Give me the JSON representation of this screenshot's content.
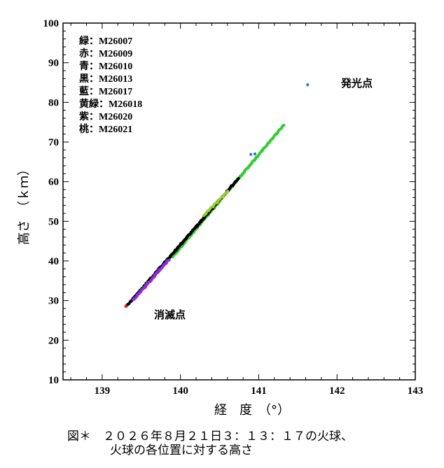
{
  "chart_data": {
    "type": "scatter",
    "title": "",
    "xlabel": "経　度　（°）",
    "ylabel": "高さ　（ｋｍ）",
    "xlim": [
      138.5,
      143
    ],
    "ylim": [
      10,
      100
    ],
    "x_ticks": [
      139,
      140,
      141,
      142,
      143
    ],
    "y_ticks": [
      10,
      20,
      30,
      40,
      50,
      60,
      70,
      80,
      90,
      100
    ],
    "grid": false,
    "legend_position": "top-left",
    "legend": [
      {
        "label": "緑：M26007",
        "color": "#33cc33"
      },
      {
        "label": "赤：M26009",
        "color": "#e02020"
      },
      {
        "label": "青：M26010",
        "color": "#1f77d0"
      },
      {
        "label": "黒：M26013",
        "color": "#000000"
      },
      {
        "label": "藍：M26017",
        "color": "#3a3aa0"
      },
      {
        "label": "黄緑：M26018",
        "color": "#9acd32"
      },
      {
        "label": "紫：M26020",
        "color": "#8a2be2"
      },
      {
        "label": "桃：M26021",
        "color": "#ff69b4"
      }
    ],
    "series": [
      {
        "name": "緑：M26007",
        "color": "#33cc33",
        "from": [
          139.9,
          41.0
        ],
        "to": [
          141.32,
          74.3
        ],
        "points": 160
      },
      {
        "name": "赤：M26009",
        "color": "#e02020",
        "from": [
          139.3,
          28.5
        ],
        "to": [
          139.32,
          28.9
        ],
        "points": 3
      },
      {
        "name": "青：M26010",
        "color": "#1f77d0",
        "from": [
          140.9,
          67.0
        ],
        "to": [
          140.95,
          67.1
        ],
        "points": 2
      },
      {
        "name": "青：M26010",
        "color": "#1f77d0",
        "from": [
          141.63,
          84.5
        ],
        "to": [
          141.63,
          84.5
        ],
        "points": 1
      },
      {
        "name": "黒：M26013",
        "color": "#000000",
        "from": [
          139.33,
          29.0
        ],
        "to": [
          140.74,
          60.8
        ],
        "points": 200
      },
      {
        "name": "黄緑：M26018",
        "color": "#9acd32",
        "from": [
          140.3,
          51.5
        ],
        "to": [
          140.6,
          57.5
        ],
        "points": 25
      },
      {
        "name": "紫：M26020",
        "color": "#8a2be2",
        "from": [
          139.4,
          30.2
        ],
        "to": [
          139.85,
          40.3
        ],
        "points": 70
      }
    ],
    "annotations": [
      {
        "text": "発光点",
        "x": 141.95,
        "y": 84.5
      },
      {
        "text": "消滅点",
        "x": 139.55,
        "y": 21.5
      }
    ]
  },
  "caption": {
    "line1": "図＊　２０２６年８月２１日３：１３：１７の火球、",
    "line2": "火球の各位置に対する高さ"
  }
}
